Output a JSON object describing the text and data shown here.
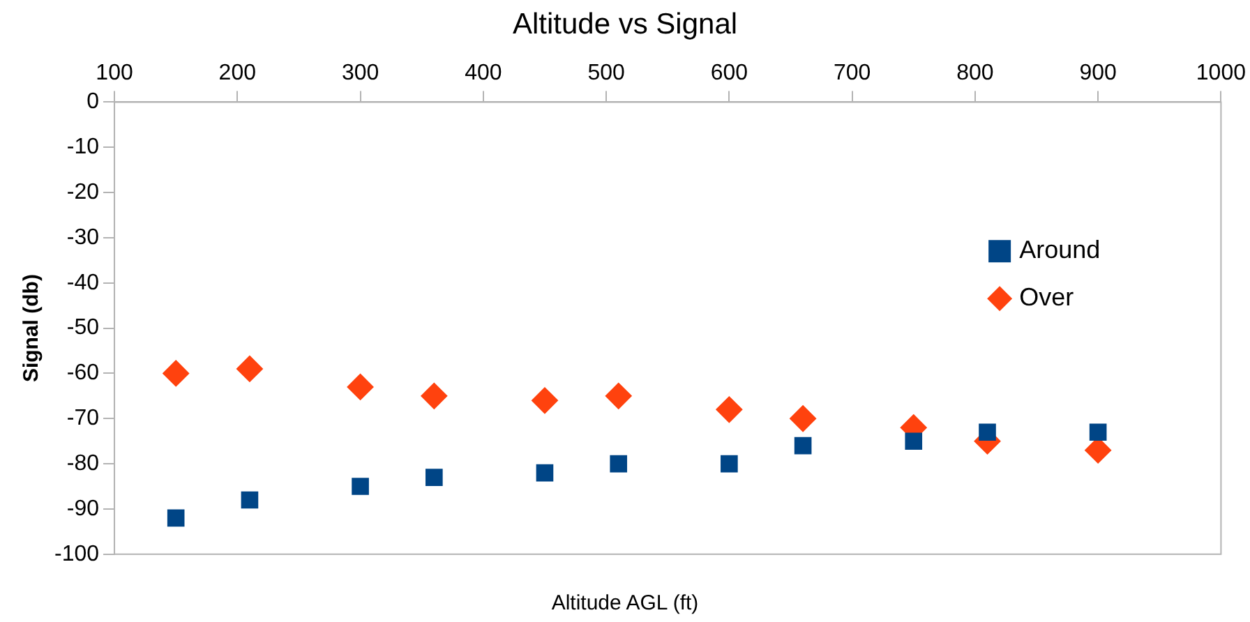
{
  "chart_data": {
    "type": "scatter",
    "title": "Altitude vs Signal",
    "xlabel": "Altitude AGL (ft)",
    "ylabel": "Signal (db)",
    "x": [
      150,
      210,
      300,
      360,
      450,
      510,
      600,
      660,
      750,
      810,
      900
    ],
    "series": [
      {
        "name": "Around",
        "color": "#004586",
        "marker": "square",
        "values": [
          -92,
          -88,
          -85,
          -83,
          -82,
          -80,
          -80,
          -76,
          -75,
          -73,
          -73
        ]
      },
      {
        "name": "Over",
        "color": "#ff420e",
        "marker": "diamond",
        "values": [
          -60,
          -59,
          -63,
          -65,
          -66,
          -65,
          -68,
          -70,
          -72,
          -75,
          -77
        ]
      }
    ],
    "xlim": [
      100,
      1000
    ],
    "xticks": [
      100,
      200,
      300,
      400,
      500,
      600,
      700,
      800,
      900,
      1000
    ],
    "ylim": [
      -100,
      0
    ],
    "yticks": [
      0,
      -10,
      -20,
      -30,
      -40,
      -50,
      -60,
      -70,
      -80,
      -90,
      -100
    ],
    "grid": false,
    "legend": "right"
  }
}
